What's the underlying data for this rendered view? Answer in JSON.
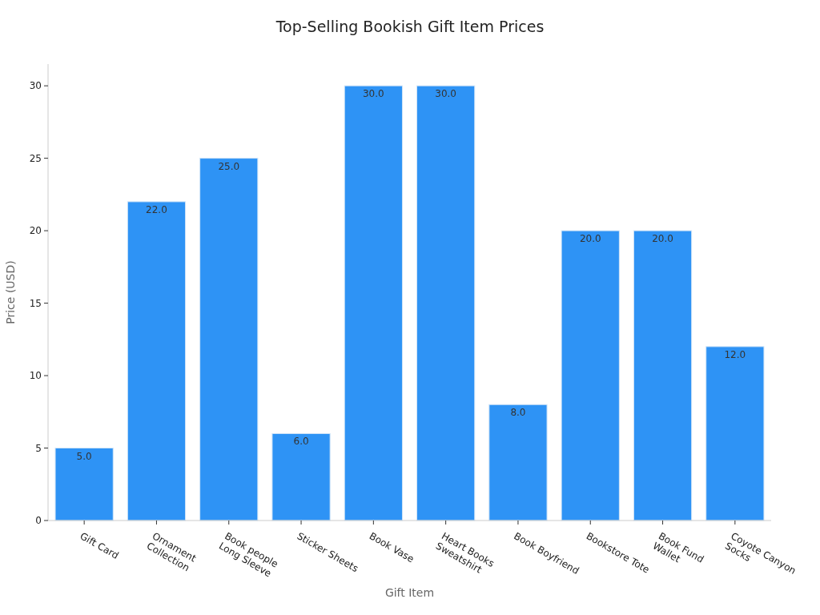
{
  "chart_data": {
    "type": "bar",
    "title": "Top-Selling Bookish Gift Item Prices",
    "xlabel": "Gift Item",
    "ylabel": "Price (USD)",
    "categories": [
      "Gift Card",
      "Ornament\nCollection",
      "Book people\nLong Sleeve",
      "Sticker Sheets",
      "Book Vase",
      "Heart Books\nSweatshirt",
      "Book Boyfriend",
      "Bookstore Tote",
      "Book Fund\nWallet",
      "Coyote Canyon\nSocks"
    ],
    "values": [
      5,
      22,
      25,
      6,
      30,
      30,
      8,
      20,
      20,
      12
    ],
    "value_labels": [
      "5.0",
      "22.0",
      "25.0",
      "6.0",
      "30.0",
      "30.0",
      "8.0",
      "20.0",
      "20.0",
      "12.0"
    ],
    "color": "#2e93f5",
    "ylim": [
      0,
      31.5
    ],
    "yticks": [
      0,
      5,
      10,
      15,
      20,
      25,
      30
    ],
    "grid": false
  }
}
